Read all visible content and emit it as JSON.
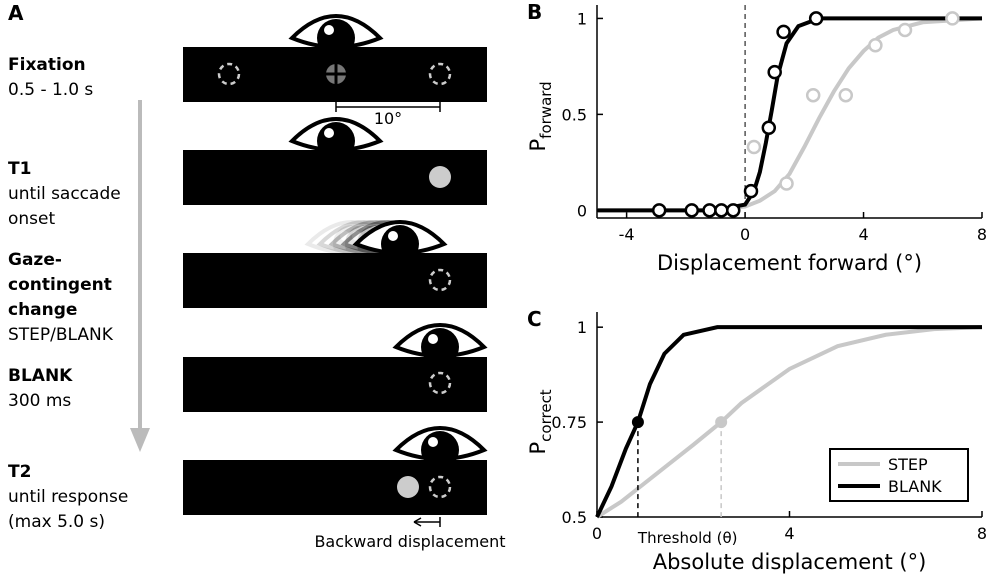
{
  "panel_a": {
    "label": "A",
    "steps": [
      {
        "title": "Fixation",
        "detail": "0.5 - 1.0 s"
      },
      {
        "title": "T1",
        "detail": "until saccade onset"
      },
      {
        "title": "Gaze-contingent change",
        "detail": "STEP/BLANK"
      },
      {
        "title": "BLANK",
        "detail": "300 ms"
      },
      {
        "title": "T2",
        "detail": "until response (max 5.0 s)"
      }
    ],
    "scale_label": "10°",
    "displacement_label": "Backward displacement"
  },
  "chart_data": [
    {
      "type": "line",
      "panel": "B",
      "xlabel": "Displacement forward (°)",
      "ylabel": "P",
      "ylabel_sub": "forward",
      "xlim": [
        -5,
        8
      ],
      "ylim": [
        -0.04,
        1.07
      ],
      "xticks": [
        -4,
        0,
        4,
        8
      ],
      "yticks": [
        0,
        0.5,
        1
      ],
      "reference_x": 0,
      "series": [
        {
          "style": "line",
          "color": "#c8c8c8",
          "x": [
            -5,
            -1,
            0,
            0.5,
            1,
            1.5,
            2,
            2.5,
            3,
            3.5,
            4,
            4.5,
            5,
            6,
            7,
            8
          ],
          "values": [
            0,
            0,
            0.02,
            0.05,
            0.1,
            0.19,
            0.33,
            0.48,
            0.62,
            0.74,
            0.83,
            0.9,
            0.94,
            0.98,
            0.99,
            1
          ]
        },
        {
          "style": "points",
          "color": "#c8c8c8",
          "x": [
            0.3,
            1.4,
            2.3,
            3.4,
            4.4,
            5.4,
            7.0
          ],
          "values": [
            0.33,
            0.14,
            0.6,
            0.6,
            0.86,
            0.94,
            1.0
          ]
        },
        {
          "style": "line",
          "color": "#000000",
          "x": [
            -5,
            -1,
            0,
            0.3,
            0.5,
            0.7,
            0.9,
            1.1,
            1.4,
            1.8,
            2.5,
            8
          ],
          "values": [
            0,
            0,
            0.03,
            0.1,
            0.2,
            0.35,
            0.52,
            0.7,
            0.87,
            0.96,
            1,
            1
          ]
        },
        {
          "style": "points",
          "color": "#000000",
          "x": [
            -2.9,
            -1.8,
            -1.2,
            -0.8,
            -0.4,
            0.2,
            0.8,
            1.0,
            1.3,
            2.4
          ],
          "values": [
            0,
            0,
            0,
            0,
            0,
            0.1,
            0.43,
            0.72,
            0.93,
            1.0
          ]
        }
      ]
    },
    {
      "type": "line",
      "panel": "C",
      "xlabel": "Absolute displacement (°)",
      "ylabel": "P",
      "ylabel_sub": "correct",
      "xlim": [
        0,
        8
      ],
      "ylim": [
        0.5,
        1.04
      ],
      "xticks": [
        0,
        4,
        8
      ],
      "yticks": [
        0.5,
        0.75,
        1
      ],
      "threshold_label": "Threshold (θ)",
      "legend": "lower right",
      "series": [
        {
          "name": "STEP",
          "style": "line",
          "color": "#c8c8c8",
          "x": [
            0,
            0.5,
            1,
            1.5,
            2,
            2.58,
            3,
            4,
            5,
            6,
            7,
            8
          ],
          "values": [
            0.5,
            0.54,
            0.59,
            0.64,
            0.69,
            0.75,
            0.8,
            0.89,
            0.95,
            0.98,
            0.995,
            1
          ],
          "threshold": [
            2.58,
            0.75
          ]
        },
        {
          "name": "BLANK",
          "style": "line",
          "color": "#000000",
          "x": [
            0,
            0.3,
            0.6,
            0.85,
            1.1,
            1.4,
            1.8,
            2.5,
            8
          ],
          "values": [
            0.5,
            0.58,
            0.68,
            0.75,
            0.85,
            0.93,
            0.98,
            1,
            1
          ],
          "threshold": [
            0.85,
            0.75
          ]
        }
      ]
    }
  ]
}
